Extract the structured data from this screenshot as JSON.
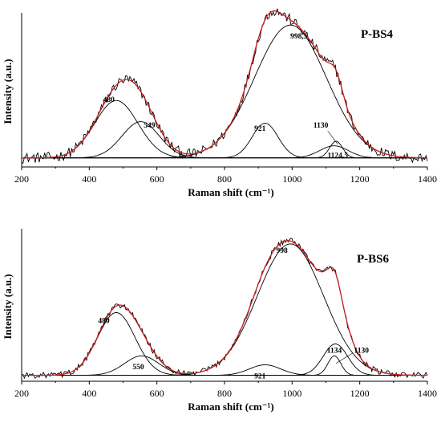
{
  "colors": {
    "measured": "#000000",
    "components": "#000000",
    "fit": "#cc1f1f",
    "axis": "#000000"
  },
  "chart_data": [
    {
      "type": "line",
      "title": "P-BS4",
      "xlabel": "Raman shift (cm⁻¹)",
      "ylabel": "Intensity (a.u.)",
      "xlim": [
        200,
        1400
      ],
      "xticks": [
        200,
        400,
        600,
        800,
        1000,
        1200,
        1400
      ],
      "ylim": [
        0,
        1.0
      ],
      "baseline": 0.06,
      "noise": 0.035,
      "peaks": [
        {
          "label": "480",
          "center": 480,
          "fwhm": 150,
          "height": 0.38,
          "label_x": 458,
          "label_y": 0.43
        },
        {
          "label": "549",
          "center": 552,
          "fwhm": 130,
          "height": 0.24,
          "label_x": 578,
          "label_y": 0.26
        },
        {
          "label": "921",
          "center": 920,
          "fwhm": 90,
          "height": 0.23,
          "label_x": 905,
          "label_y": 0.24
        },
        {
          "label": "998,5",
          "center": 995,
          "fwhm": 250,
          "height": 0.88,
          "label_x": 1020,
          "label_y": 0.85
        },
        {
          "label": "1130",
          "center": 1130,
          "fwhm": 45,
          "height": 0.11,
          "label_x": 1085,
          "label_y": 0.26
        },
        {
          "label": "1124,5",
          "center": 1124,
          "fwhm": 100,
          "height": 0.08,
          "label_x": 1135,
          "label_y": 0.06
        }
      ]
    },
    {
      "type": "line",
      "title": "P-BS6",
      "xlabel": "Raman shift (cm⁻¹)",
      "ylabel": "Intensity (a.u.)",
      "xlim": [
        200,
        1400
      ],
      "xticks": [
        200,
        400,
        600,
        800,
        1000,
        1200,
        1400
      ],
      "ylim": [
        0,
        1.0
      ],
      "baseline": 0.04,
      "noise": 0.02,
      "peaks": [
        {
          "label": "480",
          "center": 480,
          "fwhm": 130,
          "height": 0.42,
          "label_x": 443,
          "label_y": 0.39
        },
        {
          "label": "550",
          "center": 555,
          "fwhm": 120,
          "height": 0.13,
          "label_x": 545,
          "label_y": 0.08
        },
        {
          "label": "921",
          "center": 920,
          "fwhm": 110,
          "height": 0.07,
          "label_x": 905,
          "label_y": 0.02
        },
        {
          "label": "998",
          "center": 995,
          "fwhm": 230,
          "height": 0.88,
          "label_x": 970,
          "label_y": 0.86
        },
        {
          "label": "1134",
          "center": 1128,
          "fwhm": 85,
          "height": 0.21,
          "label_x": 1125,
          "label_y": 0.19
        },
        {
          "label": "1130",
          "center": 1125,
          "fwhm": 45,
          "height": 0.13,
          "label_x": 1205,
          "label_y": 0.19
        }
      ]
    }
  ]
}
